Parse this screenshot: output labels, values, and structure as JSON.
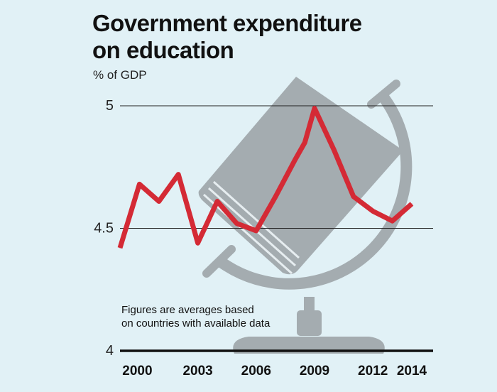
{
  "title_line1": "Government expenditure",
  "title_line2": "on education",
  "subtitle": "% of GDP",
  "note_line1": "Figures are averages based",
  "note_line2": "on countries with available data",
  "colors": {
    "background": "#e1f1f6",
    "line": "#d42a35",
    "illustration": "#a4acb0",
    "text": "#111111"
  },
  "chart_data": {
    "type": "line",
    "title": "Government expenditure on education",
    "ylabel": "% of GDP",
    "ylim": [
      4,
      5
    ],
    "yticks": [
      4,
      4.5,
      5
    ],
    "ytick_labels": [
      "4",
      "4.5",
      "5"
    ],
    "xticks": [
      2000,
      2003,
      2006,
      2009,
      2012,
      2014
    ],
    "xtick_labels": [
      "2000",
      "2003",
      "2006",
      "2009",
      "2012",
      "2014"
    ],
    "grid": true,
    "x": [
      1999,
      2000,
      2001,
      2002,
      2003,
      2004,
      2005,
      2006,
      2007,
      2008,
      2008.5,
      2009,
      2010,
      2011,
      2012,
      2013,
      2014
    ],
    "series": [
      {
        "values": [
          4.42,
          4.68,
          4.61,
          4.72,
          4.44,
          4.61,
          4.52,
          4.49,
          4.63,
          4.78,
          4.85,
          4.99,
          4.82,
          4.63,
          4.57,
          4.53,
          4.6
        ]
      }
    ]
  }
}
